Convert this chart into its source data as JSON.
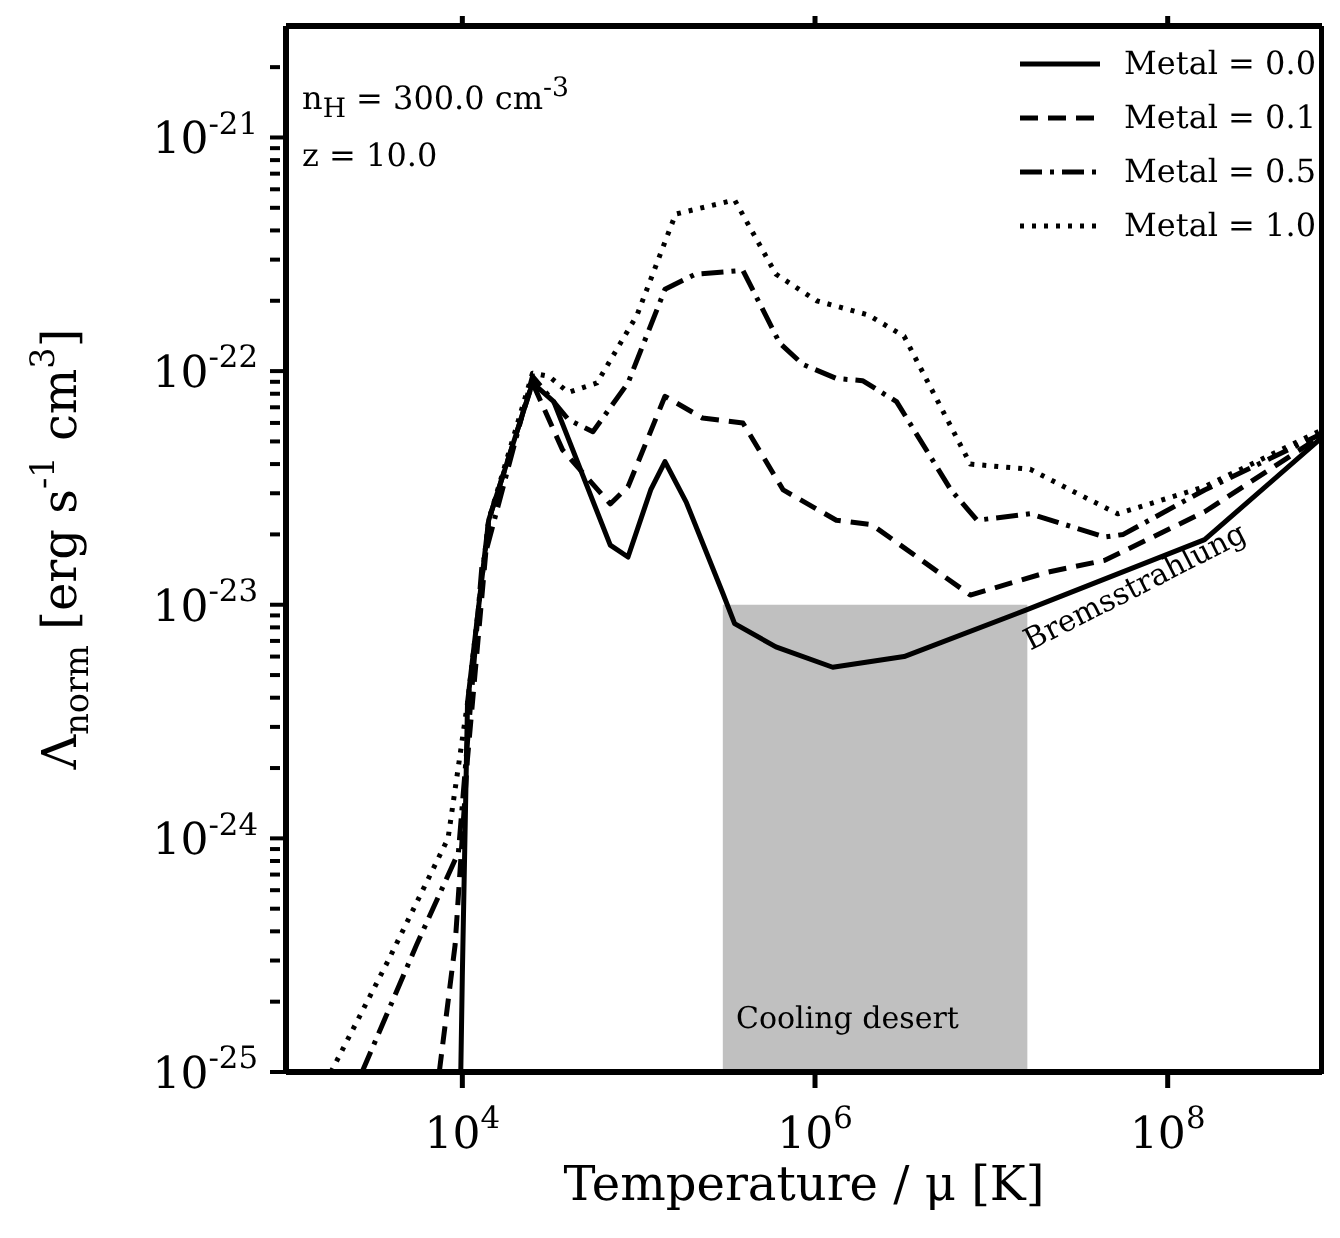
{
  "chart_data": {
    "type": "line",
    "xlabel": "Temperature / μ [K]",
    "ylabel": "Λ$_{norm}$ [erg s$^{-1}$ cm$^{3}$]",
    "log": "xy",
    "xlim": [
      1000,
      750000000.0
    ],
    "ylim": [
      1e-25,
      3e-21
    ],
    "xticks": [
      {
        "value": 10000.0,
        "label": "10$^{4}$"
      },
      {
        "value": 1000000.0,
        "label": "10$^{6}$"
      },
      {
        "value": 100000000.0,
        "label": "10$^{8}$"
      }
    ],
    "yticks": [
      {
        "value": 1e-25,
        "label": "10$^{-25}$"
      },
      {
        "value": 2e-25,
        "label": null
      },
      {
        "value": 3e-25,
        "label": null
      },
      {
        "value": 4e-25,
        "label": null
      },
      {
        "value": 5e-25,
        "label": null
      },
      {
        "value": 6e-25,
        "label": null
      },
      {
        "value": 7e-25,
        "label": null
      },
      {
        "value": 8e-25,
        "label": null
      },
      {
        "value": 9e-25,
        "label": null
      },
      {
        "value": 1e-24,
        "label": "10$^{-24}$"
      },
      {
        "value": 2e-24,
        "label": null
      },
      {
        "value": 3e-24,
        "label": null
      },
      {
        "value": 4e-24,
        "label": null
      },
      {
        "value": 5e-24,
        "label": null
      },
      {
        "value": 6e-24,
        "label": null
      },
      {
        "value": 7e-24,
        "label": null
      },
      {
        "value": 8e-24,
        "label": null
      },
      {
        "value": 9e-24,
        "label": null
      },
      {
        "value": 1e-23,
        "label": "10$^{-23}$"
      },
      {
        "value": 2e-23,
        "label": null
      },
      {
        "value": 3e-23,
        "label": null
      },
      {
        "value": 4e-23,
        "label": null
      },
      {
        "value": 5e-23,
        "label": null
      },
      {
        "value": 6e-23,
        "label": null
      },
      {
        "value": 7e-23,
        "label": null
      },
      {
        "value": 8e-23,
        "label": null
      },
      {
        "value": 9e-23,
        "label": null
      },
      {
        "value": 1e-22,
        "label": "10$^{-22}$"
      },
      {
        "value": 2e-22,
        "label": null
      },
      {
        "value": 3e-22,
        "label": null
      },
      {
        "value": 4e-22,
        "label": null
      },
      {
        "value": 5e-22,
        "label": null
      },
      {
        "value": 6e-22,
        "label": null
      },
      {
        "value": 7e-22,
        "label": null
      },
      {
        "value": 8e-22,
        "label": null
      },
      {
        "value": 9e-22,
        "label": null
      },
      {
        "value": 1e-21,
        "label": "10$^{-21}$"
      },
      {
        "value": 2e-21,
        "label": null
      }
    ],
    "legend": "top right",
    "marker": "none",
    "series": [
      {
        "name": "Metal = 0.0",
        "color": "#000000",
        "line_style": "solid",
        "x": [
          9800,
          10000,
          10700,
          14100,
          25000,
          33000,
          69000,
          87000,
          117000,
          141000,
          186000,
          300000,
          350000,
          600000,
          1260000,
          3200000,
          15800000,
          162000000,
          750000000
        ],
        "values": [
          1e-25,
          2.6e-25,
          3.8e-24,
          2.3e-23,
          8.9e-23,
          7.4e-23,
          1.8e-23,
          1.6e-23,
          3.1e-23,
          4.1e-23,
          2.75e-23,
          1.12e-23,
          8.3e-24,
          6.6e-24,
          5.4e-24,
          6e-24,
          9.5e-24,
          1.9e-23,
          5.2e-23
        ]
      },
      {
        "name": "Metal = 0.1",
        "color": "#000000",
        "line_style": "dashed",
        "x": [
          7400,
          9100,
          10700,
          14100,
          25000,
          37000,
          69000,
          87000,
          141000,
          230000,
          390000,
          660000,
          1320000,
          2100000,
          7600000,
          21000000,
          44000000,
          162000000,
          750000000
        ],
        "values": [
          1e-25,
          3.5e-25,
          2.2e-24,
          2.3e-23,
          8.9e-23,
          4.6e-23,
          2.7e-23,
          3.2e-23,
          7.8e-23,
          6.3e-23,
          6e-23,
          3.1e-23,
          2.3e-23,
          2.2e-23,
          1.1e-23,
          1.38e-23,
          1.55e-23,
          2.5e-23,
          5.3e-23
        ]
      },
      {
        "name": "Metal = 0.5",
        "color": "#000000",
        "line_style": "dashdot",
        "x": [
          2700,
          5500,
          9500,
          12900,
          25000,
          40000,
          55000,
          87000,
          141000,
          210000,
          390000,
          630000,
          850000,
          1320000,
          1860000,
          2900000,
          5900000,
          8300000,
          16600000,
          44000000,
          56000000,
          162000000,
          750000000
        ],
        "values": [
          1e-25,
          3.5e-25,
          8.7e-25,
          1.45e-23,
          9.5e-23,
          6.2e-23,
          5.5e-23,
          8.9e-23,
          2.24e-22,
          2.6e-22,
          2.7e-22,
          1.32e-22,
          1.07e-22,
          9.3e-23,
          9.1e-23,
          7.4e-23,
          3.1e-23,
          2.3e-23,
          2.45e-23,
          1.95e-23,
          2e-23,
          3.1e-23,
          5.4e-23
        ]
      },
      {
        "name": "Metal = 1.0",
        "color": "#000000",
        "line_style": "dotted",
        "x": [
          1800,
          3800,
          8300,
          10700,
          14100,
          25000,
          31000,
          40000,
          58000,
          98000,
          162000,
          350000,
          600000,
          1020000,
          2000000,
          3200000,
          7600000,
          16600000,
          28000000,
          52000000,
          162000000,
          750000000
        ],
        "values": [
          1e-25,
          3e-25,
          1e-24,
          3.8e-24,
          2.3e-23,
          9.8e-23,
          9.5e-23,
          8.1e-23,
          8.9e-23,
          1.74e-22,
          4.7e-22,
          5.4e-22,
          2.6e-22,
          2e-22,
          1.74e-22,
          1.41e-22,
          4e-23,
          3.8e-23,
          3.1e-23,
          2.45e-23,
          3.2e-23,
          5.6e-23
        ]
      },
      {
        "type": "area",
        "color": "#c0c0c0",
        "x": [
          300000,
          16000000
        ],
        "values": [
          1e-23,
          1e-23
        ]
      }
    ],
    "annotations": [
      "n$_{H}$ = 300.0 cm$^{-3}$",
      "z = 10.0",
      "Bremsstrahlung",
      "Cooling desert"
    ]
  }
}
